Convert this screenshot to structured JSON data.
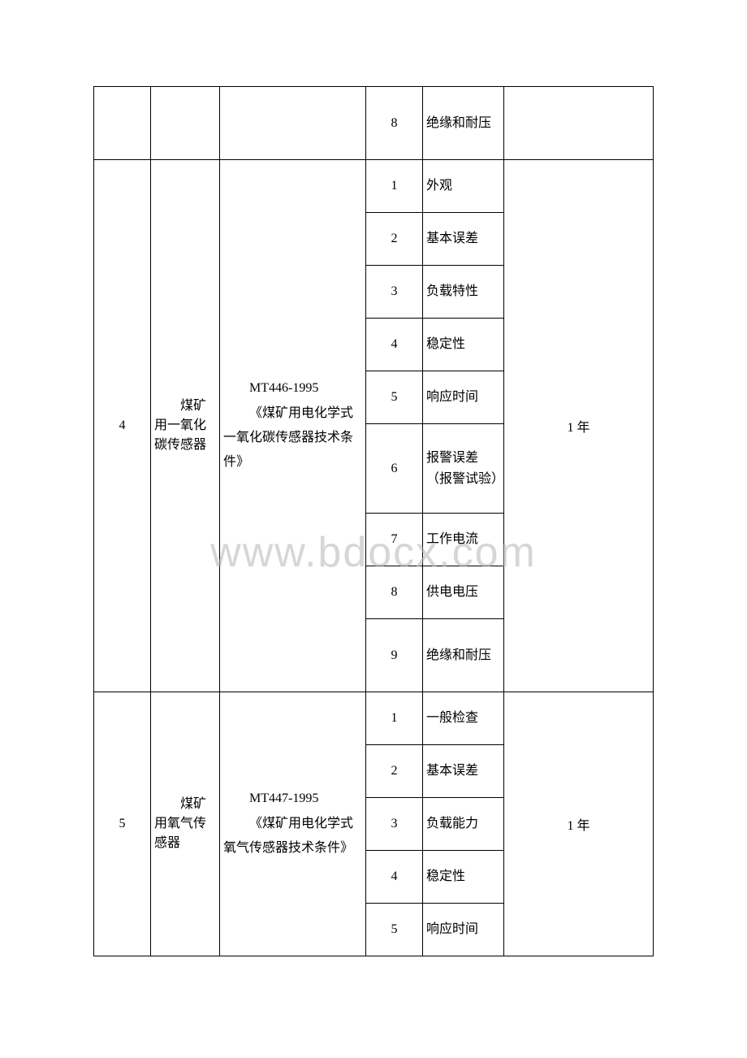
{
  "watermark": "www.bdocx.com",
  "section_prev": {
    "items": [
      {
        "num": "8",
        "label": "绝缘和耐压"
      }
    ]
  },
  "section_4": {
    "id": "4",
    "name": "煤矿用一氧化碳传感器",
    "standard_code": "MT446-1995",
    "standard_title": "《煤矿用电化学式一氧化碳传感器技术条件》",
    "period": "1 年",
    "items": [
      {
        "num": "1",
        "label": "外观"
      },
      {
        "num": "2",
        "label": "基本误差"
      },
      {
        "num": "3",
        "label": "负载特性"
      },
      {
        "num": "4",
        "label": "稳定性"
      },
      {
        "num": "5",
        "label": "响应时间"
      },
      {
        "num": "6",
        "label": "报警误差（报警试验）"
      },
      {
        "num": "7",
        "label": "工作电流"
      },
      {
        "num": "8",
        "label": "供电电压"
      },
      {
        "num": "9",
        "label": "绝缘和耐压"
      }
    ]
  },
  "section_5": {
    "id": "5",
    "name": "煤矿用氧气传感器",
    "standard_code": "MT447-1995",
    "standard_title": "《煤矿用电化学式氧气传感器技术条件》",
    "period": "1 年",
    "items": [
      {
        "num": "1",
        "label": "一般检查"
      },
      {
        "num": "2",
        "label": "基本误差"
      },
      {
        "num": "3",
        "label": "负载能力"
      },
      {
        "num": "4",
        "label": "稳定性"
      },
      {
        "num": "5",
        "label": "响应时间"
      }
    ]
  }
}
